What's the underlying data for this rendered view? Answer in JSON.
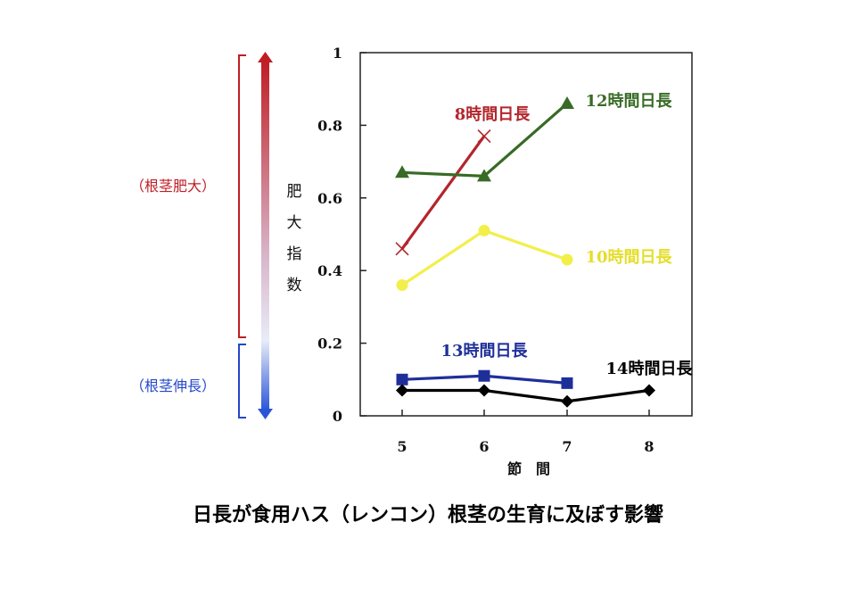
{
  "title": "日長が食用ハス（レンコン）根茎の生育に及ぼす影響",
  "side_scale": {
    "top_label": "（根茎肥大）",
    "bottom_label": "（根茎伸長）",
    "axis_label_chars": [
      "肥",
      "大",
      "指",
      "数"
    ],
    "top_color": "#c01d24",
    "bottom_color": "#2348c8"
  },
  "chart_data": {
    "type": "line",
    "x": [
      5,
      6,
      7,
      8
    ],
    "xlim": [
      4.5,
      8.5
    ],
    "ylim": [
      0,
      1
    ],
    "yticks": [
      0,
      0.2,
      0.4,
      0.6,
      0.8,
      1
    ],
    "ytick_labels": [
      "0",
      "0.2",
      "0.4",
      "0.6",
      "0.8",
      "1"
    ],
    "xticks": [
      5,
      6,
      7,
      8
    ],
    "xtick_labels": [
      "5",
      "6",
      "7",
      "8"
    ],
    "xlabel": "節　間",
    "ylabel": "肥大指数",
    "grid": false,
    "series": [
      {
        "name": "8時間日長",
        "color": "#b3262c",
        "marker": "x",
        "points": [
          [
            5,
            0.46
          ],
          [
            6,
            0.77
          ]
        ]
      },
      {
        "name": "12時間日長",
        "color": "#386b26",
        "marker": "triangle",
        "points": [
          [
            5,
            0.67
          ],
          [
            6,
            0.66
          ],
          [
            7,
            0.86
          ]
        ]
      },
      {
        "name": "10時間日長",
        "color": "#f2ef4a",
        "marker": "circle",
        "points": [
          [
            5,
            0.36
          ],
          [
            6,
            0.51
          ],
          [
            7,
            0.43
          ]
        ]
      },
      {
        "name": "13時間日長",
        "color": "#1f2f9a",
        "marker": "square",
        "points": [
          [
            5,
            0.1
          ],
          [
            6,
            0.11
          ],
          [
            7,
            0.09
          ]
        ]
      },
      {
        "name": "14時間日長",
        "color": "#000000",
        "marker": "diamond",
        "points": [
          [
            5,
            0.07
          ],
          [
            6,
            0.07
          ],
          [
            7,
            0.04
          ],
          [
            8,
            0.07
          ]
        ]
      }
    ]
  }
}
